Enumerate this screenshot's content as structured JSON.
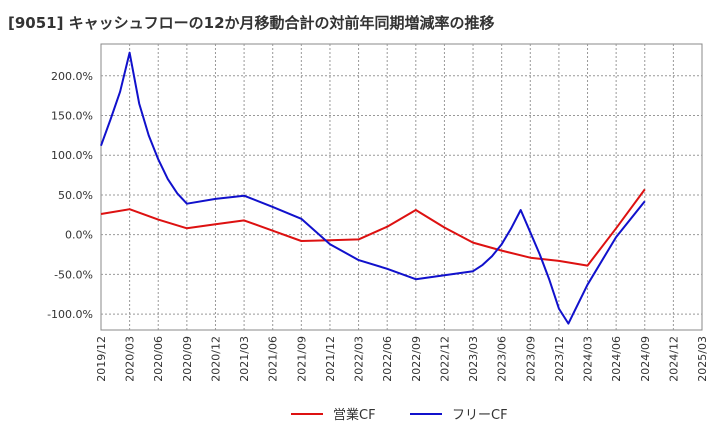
{
  "chart_data": {
    "type": "line",
    "title": "[9051]  キャッシュフローの12か月移動合計の対前年同期増減率の推移",
    "x": [
      "2019/12",
      "2020/03",
      "2020/06",
      "2020/09",
      "2020/12",
      "2021/03",
      "2021/06",
      "2021/09",
      "2021/12",
      "2022/03",
      "2022/06",
      "2022/09",
      "2022/12",
      "2023/03",
      "2023/06",
      "2023/09",
      "2023/12",
      "2024/03",
      "2024/06",
      "2024/09",
      "2024/12",
      "2025/03"
    ],
    "y_ticks": [
      "200.0%",
      "150.0%",
      "100.0%",
      "50.0%",
      "0.0%",
      "-50.0%",
      "-100.0%"
    ],
    "y_tick_values": [
      200,
      150,
      100,
      50,
      0,
      -50,
      -100
    ],
    "ylim": [
      -120,
      240
    ],
    "xlabel": "",
    "ylabel": "",
    "grid": true,
    "legend_position": "bottom",
    "series": [
      {
        "name": "営業CF",
        "color": "#dd1111",
        "points": [
          [
            "2019/12",
            26
          ],
          [
            "2020/03",
            32
          ],
          [
            "2020/06",
            19
          ],
          [
            "2020/09",
            8
          ],
          [
            "2020/12",
            13
          ],
          [
            "2021/03",
            18
          ],
          [
            "2021/06",
            5
          ],
          [
            "2021/09",
            -8
          ],
          [
            "2021/12",
            -7
          ],
          [
            "2022/03",
            -6
          ],
          [
            "2022/06",
            10
          ],
          [
            "2022/09",
            31
          ],
          [
            "2022/12",
            9
          ],
          [
            "2023/03",
            -10
          ],
          [
            "2023/06",
            -20
          ],
          [
            "2023/09",
            -29
          ],
          [
            "2023/12",
            -33
          ],
          [
            "2024/03",
            -39
          ],
          [
            "2024/06",
            8
          ],
          [
            "2024/09",
            57
          ]
        ]
      },
      {
        "name": "フリーCF",
        "color": "#1111cc",
        "points": [
          [
            "2019/12",
            112
          ],
          [
            "2020/01",
            145
          ],
          [
            "2020/02",
            180
          ],
          [
            "2020/03",
            229
          ],
          [
            "2020/04",
            165
          ],
          [
            "2020/05",
            125
          ],
          [
            "2020/06",
            95
          ],
          [
            "2020/07",
            70
          ],
          [
            "2020/08",
            52
          ],
          [
            "2020/09",
            39
          ],
          [
            "2020/12",
            45
          ],
          [
            "2021/03",
            49
          ],
          [
            "2021/06",
            35
          ],
          [
            "2021/09",
            20
          ],
          [
            "2021/12",
            -12
          ],
          [
            "2022/03",
            -32
          ],
          [
            "2022/06",
            -43
          ],
          [
            "2022/09",
            -56
          ],
          [
            "2022/12",
            -51
          ],
          [
            "2023/03",
            -46
          ],
          [
            "2023/04",
            -38
          ],
          [
            "2023/05",
            -27
          ],
          [
            "2023/06",
            -12
          ],
          [
            "2023/07",
            8
          ],
          [
            "2023/08",
            31
          ],
          [
            "2023/09",
            3
          ],
          [
            "2023/10",
            -25
          ],
          [
            "2023/11",
            -57
          ],
          [
            "2023/12",
            -93
          ],
          [
            "2024/01",
            -112
          ],
          [
            "2024/03",
            -63
          ],
          [
            "2024/06",
            -3
          ],
          [
            "2024/09",
            42
          ]
        ]
      }
    ]
  }
}
